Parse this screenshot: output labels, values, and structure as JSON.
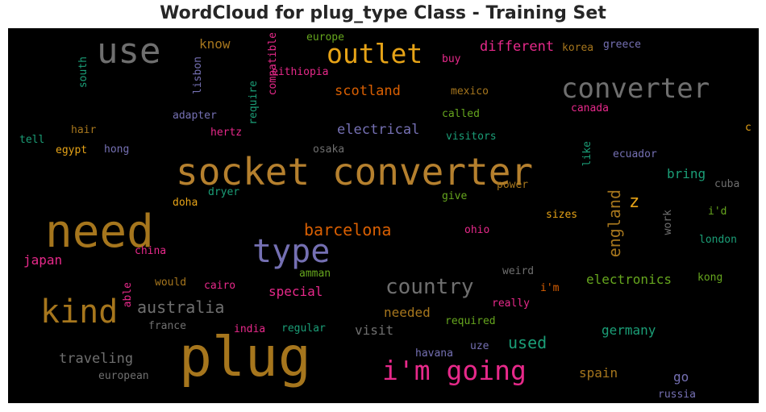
{
  "title": "WordCloud for plug_type Class - Training Set",
  "palette": {
    "orange": "#b5802e",
    "gold": "#e6a317",
    "gray": "#6f6f6f",
    "purple": "#7570b3",
    "pink": "#e7298a",
    "green": "#1b9e77",
    "olive": "#66a61e",
    "rust": "#d95f02",
    "brown": "#a6761d"
  },
  "chart_data": {
    "type": "wordcloud",
    "title": "WordCloud for plug_type Class - Training Set",
    "words": [
      {
        "text": "socket converter",
        "color": "#b5802e"
      },
      {
        "text": "plug",
        "color": "#a6761d"
      },
      {
        "text": "need",
        "color": "#a6761d"
      },
      {
        "text": "use",
        "color": "#6f6f6f"
      },
      {
        "text": "converter",
        "color": "#6f6f6f"
      },
      {
        "text": "outlet",
        "color": "#e6a317"
      },
      {
        "text": "type",
        "color": "#7570b3"
      },
      {
        "text": "kind",
        "color": "#a6761d"
      },
      {
        "text": "i'm going",
        "color": "#e7298a"
      },
      {
        "text": "country",
        "color": "#6f6f6f"
      },
      {
        "text": "australia",
        "color": "#6f6f6f"
      },
      {
        "text": "barcelona",
        "color": "#d95f02"
      },
      {
        "text": "england",
        "color": "#a6761d"
      },
      {
        "text": "z",
        "color": "#e6a317"
      },
      {
        "text": "different",
        "color": "#e7298a"
      },
      {
        "text": "scotland",
        "color": "#d95f02"
      },
      {
        "text": "electrical",
        "color": "#7570b3"
      },
      {
        "text": "used",
        "color": "#1b9e77"
      },
      {
        "text": "traveling",
        "color": "#6f6f6f"
      },
      {
        "text": "electronics",
        "color": "#66a61e"
      },
      {
        "text": "germany",
        "color": "#1b9e77"
      },
      {
        "text": "special",
        "color": "#e7298a"
      },
      {
        "text": "needed",
        "color": "#a6761d"
      },
      {
        "text": "visit",
        "color": "#6f6f6f"
      },
      {
        "text": "spain",
        "color": "#a6761d"
      },
      {
        "text": "bring",
        "color": "#1b9e77"
      },
      {
        "text": "know",
        "color": "#a6761d"
      },
      {
        "text": "japan",
        "color": "#e7298a"
      },
      {
        "text": "go",
        "color": "#7570b3"
      },
      {
        "text": "europe",
        "color": "#66a61e"
      },
      {
        "text": "eithiopia",
        "color": "#e7298a"
      },
      {
        "text": "compatible",
        "color": "#e7298a"
      },
      {
        "text": "require",
        "color": "#1b9e77"
      },
      {
        "text": "lisbon",
        "color": "#7570b3"
      },
      {
        "text": "south",
        "color": "#1b9e77"
      },
      {
        "text": "buy",
        "color": "#e7298a"
      },
      {
        "text": "korea",
        "color": "#a6761d"
      },
      {
        "text": "greece",
        "color": "#7570b3"
      },
      {
        "text": "mexico",
        "color": "#a6761d"
      },
      {
        "text": "called",
        "color": "#66a61e"
      },
      {
        "text": "canada",
        "color": "#e7298a"
      },
      {
        "text": "adapter",
        "color": "#7570b3"
      },
      {
        "text": "hertz",
        "color": "#e7298a"
      },
      {
        "text": "hair",
        "color": "#a6761d"
      },
      {
        "text": "tell",
        "color": "#1b9e77"
      },
      {
        "text": "egypt",
        "color": "#e6a317"
      },
      {
        "text": "hong",
        "color": "#7570b3"
      },
      {
        "text": "osaka",
        "color": "#6f6f6f"
      },
      {
        "text": "visitors",
        "color": "#1b9e77"
      },
      {
        "text": "c",
        "color": "#e6a317"
      },
      {
        "text": "ecuador",
        "color": "#7570b3"
      },
      {
        "text": "like",
        "color": "#1b9e77"
      },
      {
        "text": "dryer",
        "color": "#1b9e77"
      },
      {
        "text": "doha",
        "color": "#e6a317"
      },
      {
        "text": "give",
        "color": "#66a61e"
      },
      {
        "text": "power",
        "color": "#a6761d"
      },
      {
        "text": "cuba",
        "color": "#6f6f6f"
      },
      {
        "text": "i'd",
        "color": "#66a61e"
      },
      {
        "text": "work",
        "color": "#6f6f6f"
      },
      {
        "text": "sizes",
        "color": "#e6a317"
      },
      {
        "text": "ohio",
        "color": "#e7298a"
      },
      {
        "text": "london",
        "color": "#1b9e77"
      },
      {
        "text": "china",
        "color": "#e7298a"
      },
      {
        "text": "weird",
        "color": "#6f6f6f"
      },
      {
        "text": "amman",
        "color": "#66a61e"
      },
      {
        "text": "kong",
        "color": "#66a61e"
      },
      {
        "text": "would",
        "color": "#a6761d"
      },
      {
        "text": "cairo",
        "color": "#e7298a"
      },
      {
        "text": "able",
        "color": "#e7298a"
      },
      {
        "text": "i'm",
        "color": "#d95f02"
      },
      {
        "text": "really",
        "color": "#e7298a"
      },
      {
        "text": "france",
        "color": "#6f6f6f"
      },
      {
        "text": "india",
        "color": "#e7298a"
      },
      {
        "text": "regular",
        "color": "#1b9e77"
      },
      {
        "text": "required",
        "color": "#66a61e"
      },
      {
        "text": "havana",
        "color": "#7570b3"
      },
      {
        "text": "uze",
        "color": "#7570b3"
      },
      {
        "text": "european",
        "color": "#6f6f6f"
      },
      {
        "text": "russia",
        "color": "#7570b3"
      }
    ]
  }
}
